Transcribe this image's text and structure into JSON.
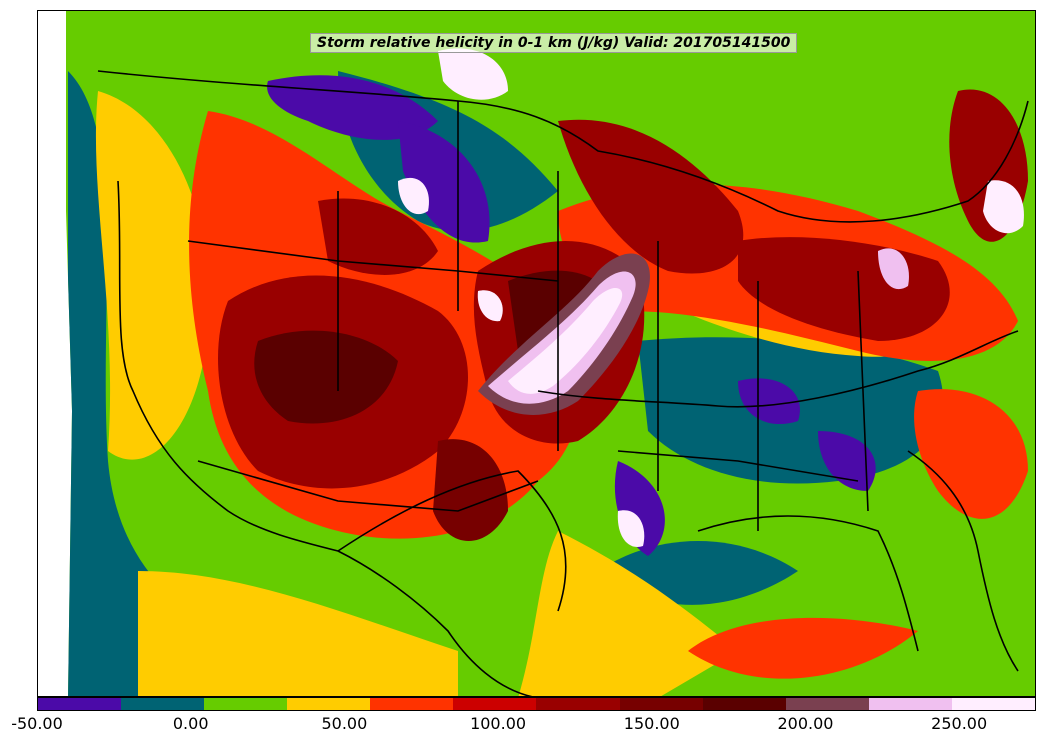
{
  "title": "Storm relative helicity in 0-1 km (J/kg) Valid: 201705141500",
  "colorbar": {
    "colors": [
      "#4b0aa8",
      "#006373",
      "#66cc00",
      "#ffcc00",
      "#ff3300",
      "#cc0000",
      "#990000",
      "#770000",
      "#5a0000",
      "#7a4050",
      "#f0c0f0",
      "#ffeeff"
    ],
    "tick_labels": [
      "-50.00",
      "0.00",
      "50.00",
      "100.00",
      "150.00",
      "200.00",
      "250.00"
    ],
    "tick_values": [
      -50,
      0,
      50,
      100,
      150,
      200,
      250
    ],
    "min": -50,
    "max": 275
  },
  "map_colors": {
    "ocean": "#66cc00",
    "boundary": "#000000"
  }
}
